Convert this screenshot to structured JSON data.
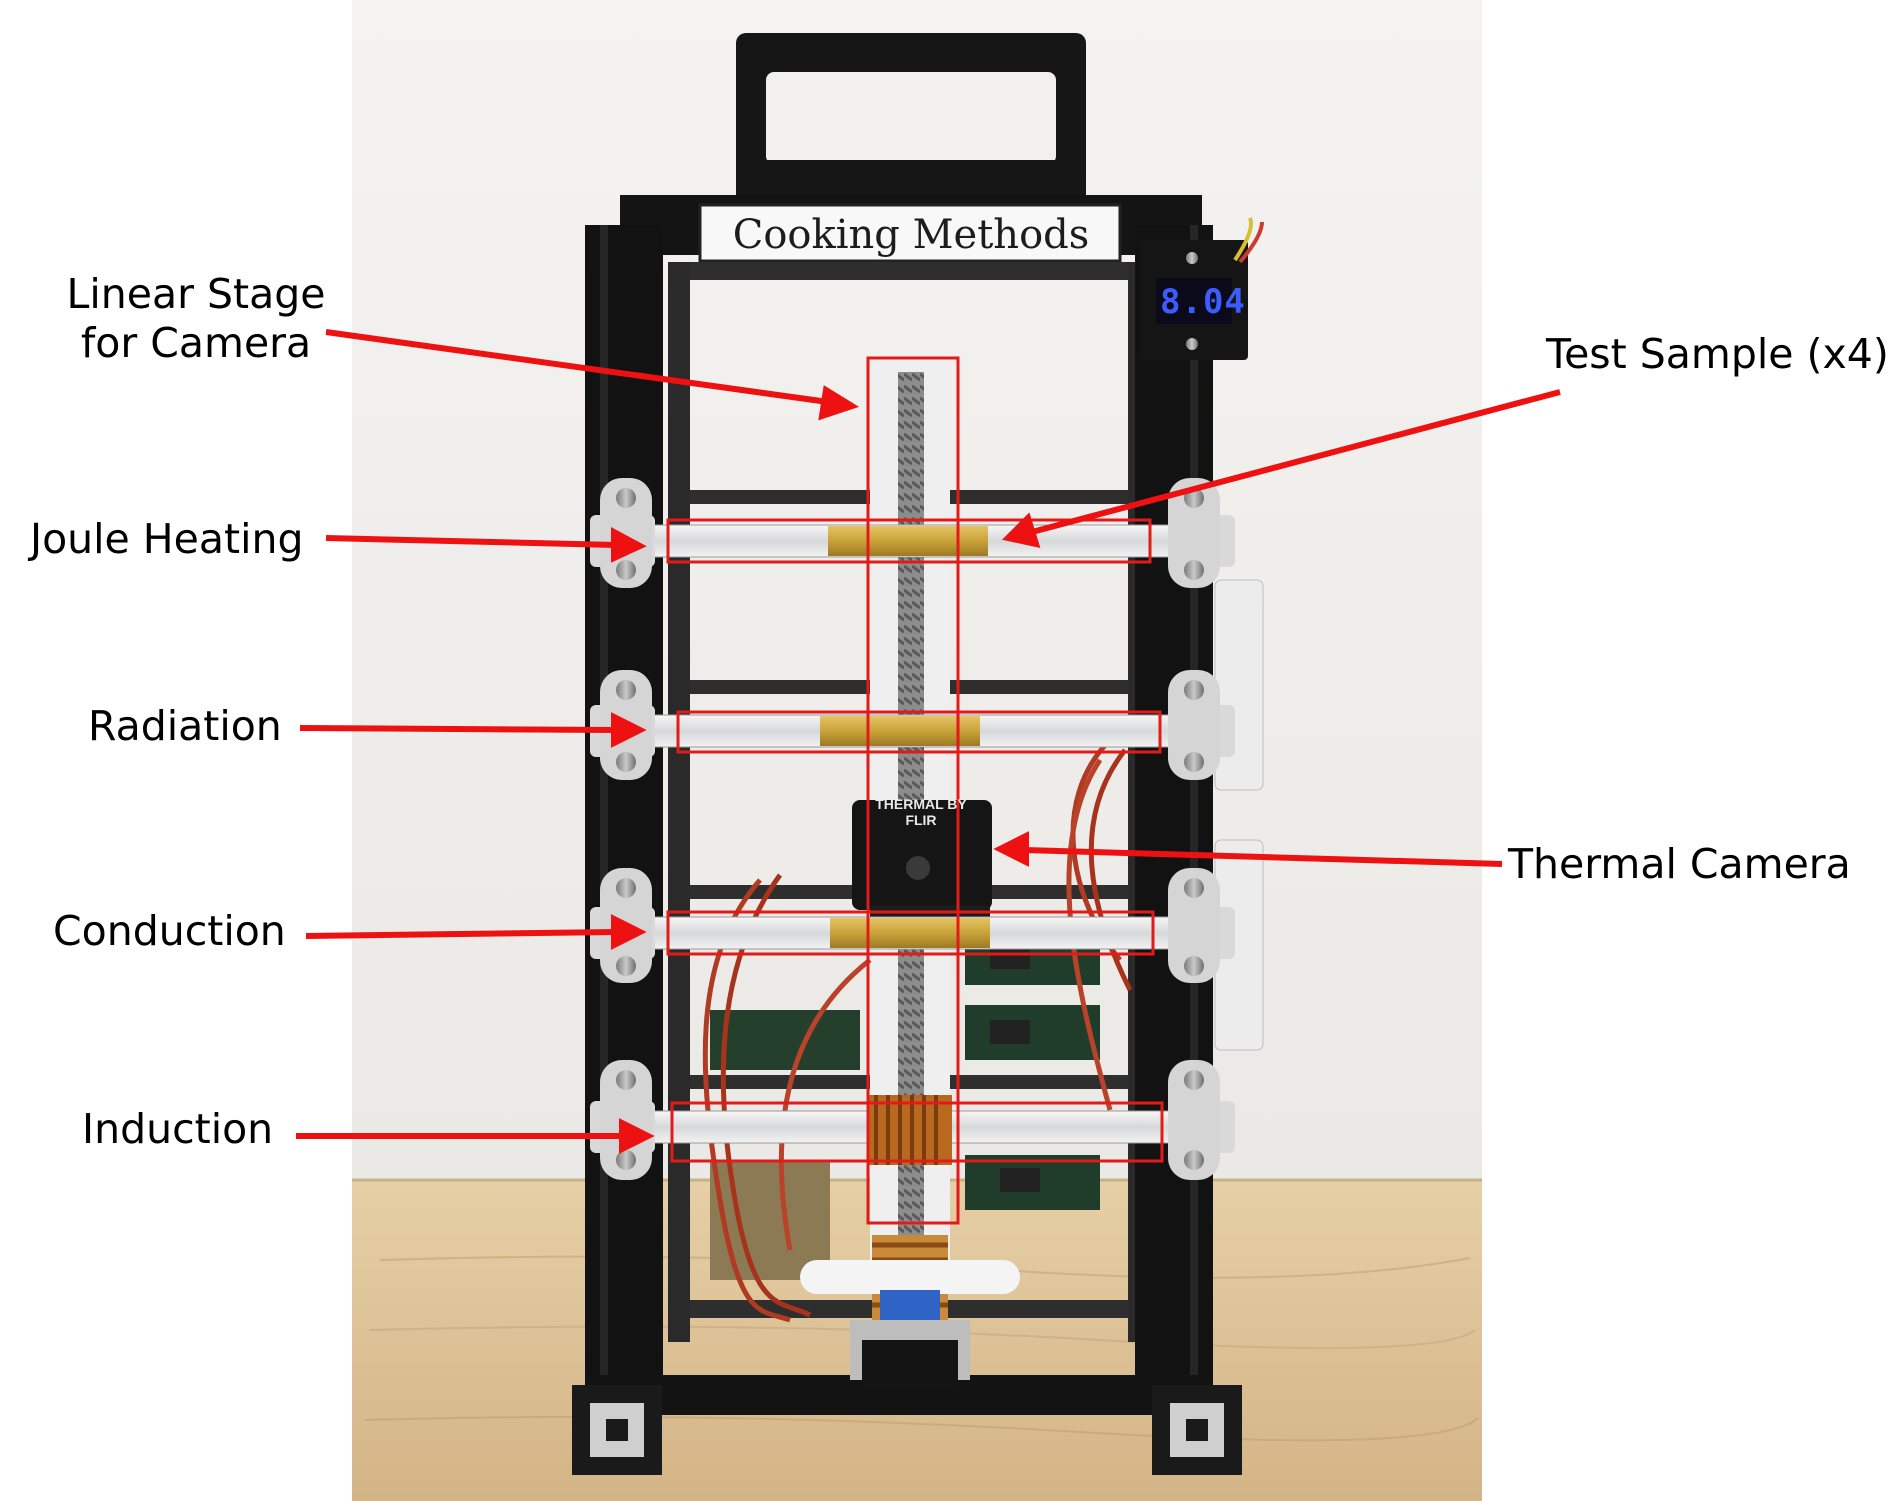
{
  "labels": {
    "linear_stage_line1": "Linear Stage",
    "linear_stage_line2": "for Camera",
    "joule_heating": "Joule Heating",
    "radiation": "Radiation",
    "conduction": "Conduction",
    "induction": "Induction",
    "test_sample": "Test Sample (x4)",
    "thermal_camera": "Thermal Camera"
  },
  "device": {
    "sign": "Cooking Methods",
    "meter_reading": "8.04",
    "camera_brand": "THERMAL BY FLIR"
  },
  "colors": {
    "arrow": "#ee1111",
    "highlight_box": "#e21a1a",
    "frame": "#141414",
    "background_wall": "#f1f0ee",
    "table_wood": "#dcc39a",
    "brass": "#c9a23a",
    "meter_digits": "#3c5cff"
  }
}
